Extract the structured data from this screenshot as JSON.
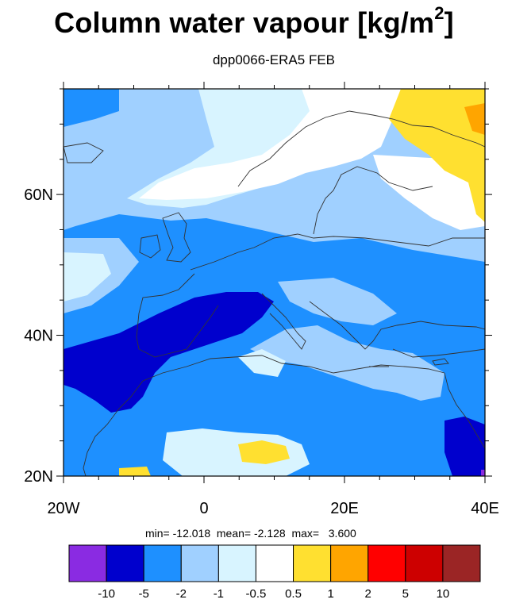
{
  "title_text": "Column water vapour [kg/m",
  "title_superscript": "2",
  "title_close": "]",
  "subtitle": "dpp0066-ERA5 FEB",
  "map": {
    "lon_range": [
      -20,
      40
    ],
    "lat_range": [
      20,
      75
    ],
    "lat_tick_labels": [
      "60N",
      "40N",
      "20N"
    ],
    "lon_tick_labels": [
      "20W",
      "0",
      "20E",
      "40E"
    ]
  },
  "stats": {
    "min_label": "min=",
    "min_value": "-12.018",
    "mean_label": "mean=",
    "mean_value": "-2.128",
    "max_label": "max=",
    "max_value": "3.600"
  },
  "colorbar": {
    "colors": [
      "#8a2be2",
      "#0000cd",
      "#1e90ff",
      "#a0d0ff",
      "#d8f4ff",
      "#ffffff",
      "#ffe030",
      "#ffa500",
      "#ff0000",
      "#cd0000",
      "#9b2525"
    ],
    "labels": [
      "-10",
      "-5",
      "-2",
      "-1",
      "-0.5",
      "0.5",
      "1",
      "2",
      "5",
      "10"
    ]
  }
}
